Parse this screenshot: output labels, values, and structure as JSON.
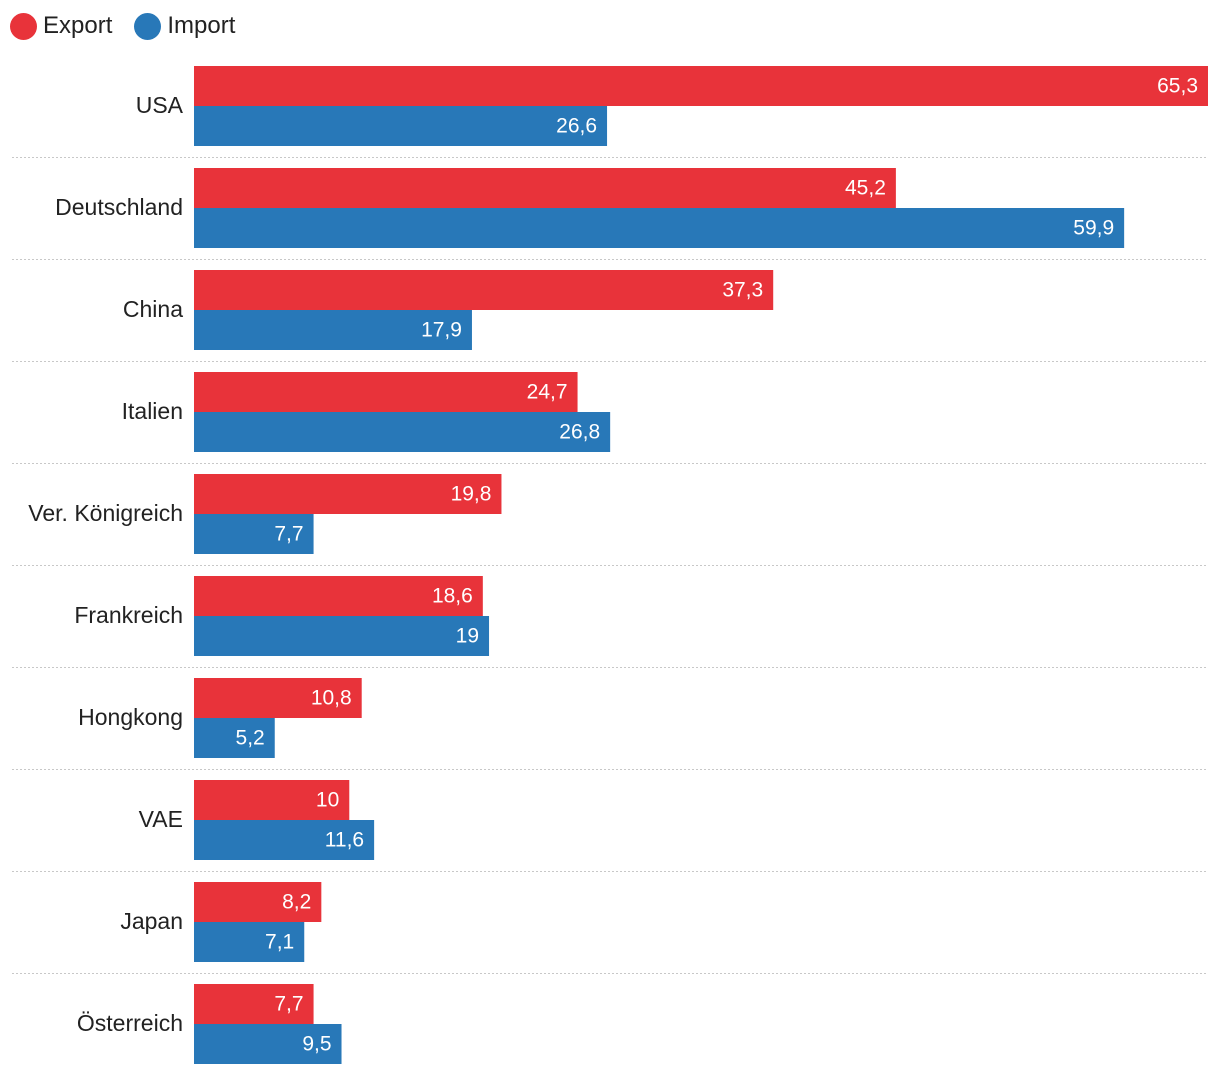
{
  "legend": {
    "export_label": "Export",
    "import_label": "Import"
  },
  "colors": {
    "export": "#e8333a",
    "import": "#2878b8"
  },
  "chart_data": {
    "type": "bar",
    "orientation": "horizontal",
    "categories": [
      "USA",
      "Deutschland",
      "China",
      "Italien",
      "Ver. Königreich",
      "Frankreich",
      "Hongkong",
      "VAE",
      "Japan",
      "Österreich"
    ],
    "series": [
      {
        "name": "Export",
        "values": [
          65.3,
          45.2,
          37.3,
          24.7,
          19.8,
          18.6,
          10.8,
          10,
          8.2,
          7.7
        ],
        "labels": [
          "65,3",
          "45,2",
          "37,3",
          "24,7",
          "19,8",
          "18,6",
          "10,8",
          "10",
          "8,2",
          "7,7"
        ]
      },
      {
        "name": "Import",
        "values": [
          26.6,
          59.9,
          17.9,
          26.8,
          7.7,
          19,
          5.2,
          11.6,
          7.1,
          9.5
        ],
        "labels": [
          "26,6",
          "59,9",
          "17,9",
          "26,8",
          "7,7",
          "19",
          "5,2",
          "11,6",
          "7,1",
          "9,5"
        ]
      }
    ],
    "xlim": [
      0,
      65.3
    ],
    "grid": false,
    "legend_position": "top-left"
  }
}
